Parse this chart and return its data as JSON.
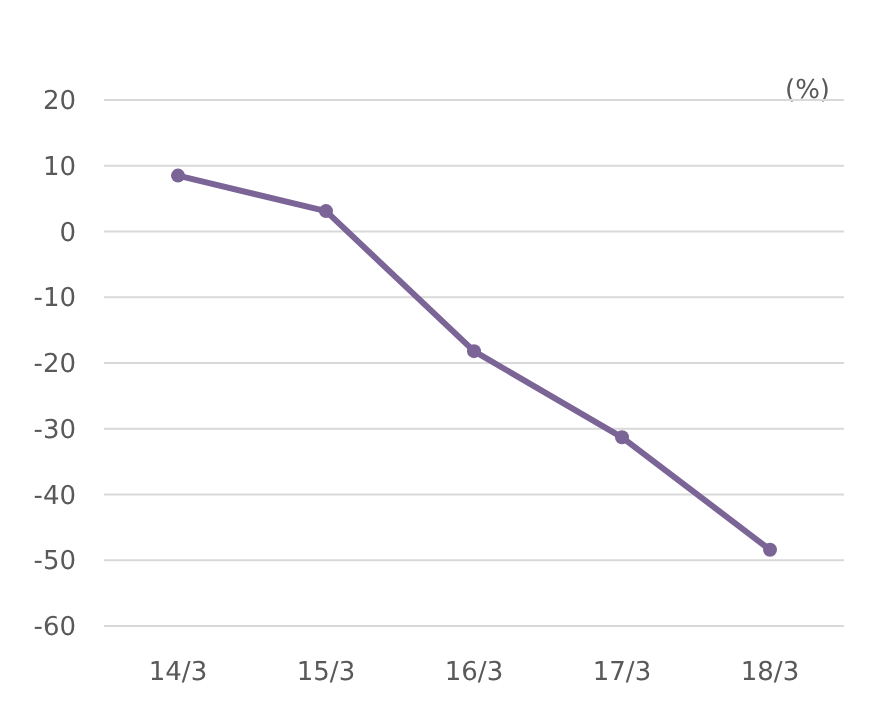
{
  "chart_data": {
    "type": "line",
    "ylabel": "(%)",
    "categories": [
      "14/3",
      "15/3",
      "16/3",
      "17/3",
      "18/3"
    ],
    "series": [
      {
        "color": "#7b6496",
        "values": [
          8.5,
          3.1,
          -18.2,
          -31.3,
          -48.4
        ]
      }
    ],
    "ylim": [
      -60,
      20
    ],
    "yticks": [
      -60,
      -50,
      -40,
      -30,
      -20,
      -10,
      0,
      10,
      20
    ],
    "grid": "y",
    "marker": "circle",
    "line_style": "solid"
  }
}
